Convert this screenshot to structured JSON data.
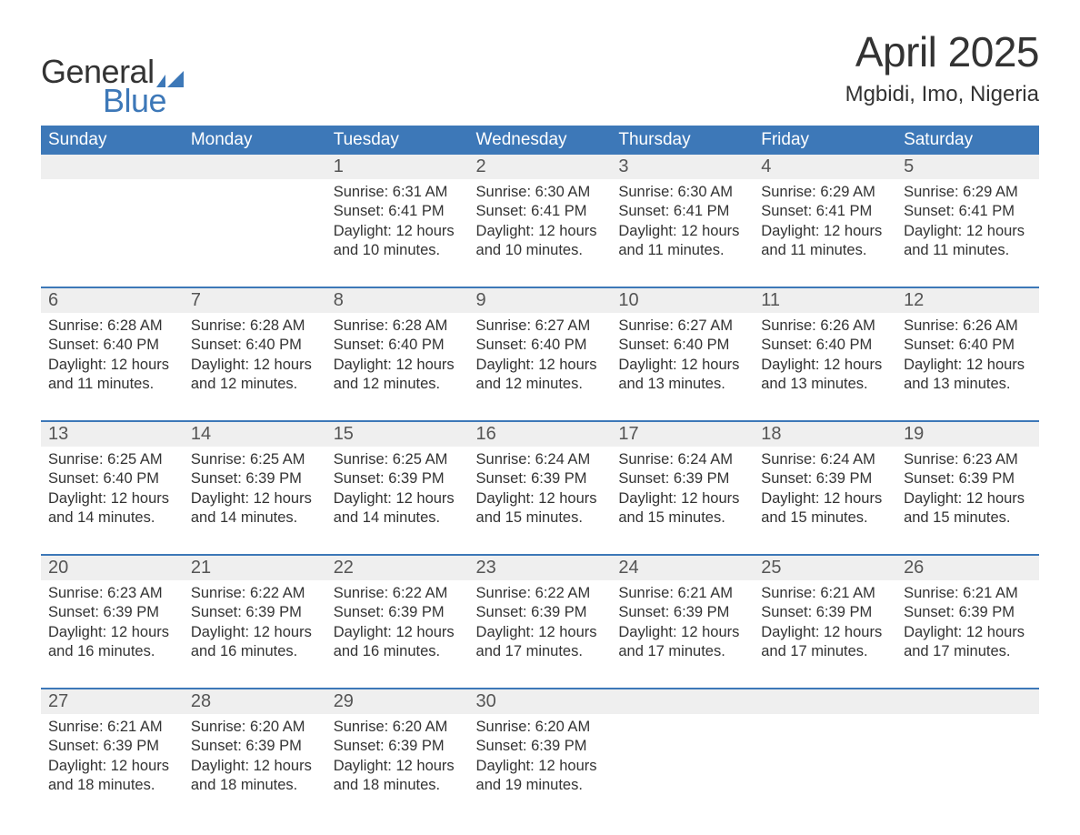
{
  "logo": {
    "general": "General",
    "blue": "Blue",
    "flag_color": "#3d78b8"
  },
  "title": "April 2025",
  "location": "Mgbidi, Imo, Nigeria",
  "colors": {
    "header_bg": "#3d78b8",
    "header_text": "#ffffff",
    "daynum_bg": "#efefef",
    "text": "#333333",
    "row_divider": "#3d78b8"
  },
  "fonts": {
    "title_size_pt": 34,
    "location_size_pt": 18,
    "header_size_pt": 14,
    "daynum_size_pt": 15,
    "body_size_pt": 12
  },
  "day_headers": [
    "Sunday",
    "Monday",
    "Tuesday",
    "Wednesday",
    "Thursday",
    "Friday",
    "Saturday"
  ],
  "weeks": [
    [
      null,
      null,
      {
        "n": "1",
        "sr": "6:31 AM",
        "ss": "6:41 PM",
        "dl": "12 hours and 10 minutes."
      },
      {
        "n": "2",
        "sr": "6:30 AM",
        "ss": "6:41 PM",
        "dl": "12 hours and 10 minutes."
      },
      {
        "n": "3",
        "sr": "6:30 AM",
        "ss": "6:41 PM",
        "dl": "12 hours and 11 minutes."
      },
      {
        "n": "4",
        "sr": "6:29 AM",
        "ss": "6:41 PM",
        "dl": "12 hours and 11 minutes."
      },
      {
        "n": "5",
        "sr": "6:29 AM",
        "ss": "6:41 PM",
        "dl": "12 hours and 11 minutes."
      }
    ],
    [
      {
        "n": "6",
        "sr": "6:28 AM",
        "ss": "6:40 PM",
        "dl": "12 hours and 11 minutes."
      },
      {
        "n": "7",
        "sr": "6:28 AM",
        "ss": "6:40 PM",
        "dl": "12 hours and 12 minutes."
      },
      {
        "n": "8",
        "sr": "6:28 AM",
        "ss": "6:40 PM",
        "dl": "12 hours and 12 minutes."
      },
      {
        "n": "9",
        "sr": "6:27 AM",
        "ss": "6:40 PM",
        "dl": "12 hours and 12 minutes."
      },
      {
        "n": "10",
        "sr": "6:27 AM",
        "ss": "6:40 PM",
        "dl": "12 hours and 13 minutes."
      },
      {
        "n": "11",
        "sr": "6:26 AM",
        "ss": "6:40 PM",
        "dl": "12 hours and 13 minutes."
      },
      {
        "n": "12",
        "sr": "6:26 AM",
        "ss": "6:40 PM",
        "dl": "12 hours and 13 minutes."
      }
    ],
    [
      {
        "n": "13",
        "sr": "6:25 AM",
        "ss": "6:40 PM",
        "dl": "12 hours and 14 minutes."
      },
      {
        "n": "14",
        "sr": "6:25 AM",
        "ss": "6:39 PM",
        "dl": "12 hours and 14 minutes."
      },
      {
        "n": "15",
        "sr": "6:25 AM",
        "ss": "6:39 PM",
        "dl": "12 hours and 14 minutes."
      },
      {
        "n": "16",
        "sr": "6:24 AM",
        "ss": "6:39 PM",
        "dl": "12 hours and 15 minutes."
      },
      {
        "n": "17",
        "sr": "6:24 AM",
        "ss": "6:39 PM",
        "dl": "12 hours and 15 minutes."
      },
      {
        "n": "18",
        "sr": "6:24 AM",
        "ss": "6:39 PM",
        "dl": "12 hours and 15 minutes."
      },
      {
        "n": "19",
        "sr": "6:23 AM",
        "ss": "6:39 PM",
        "dl": "12 hours and 15 minutes."
      }
    ],
    [
      {
        "n": "20",
        "sr": "6:23 AM",
        "ss": "6:39 PM",
        "dl": "12 hours and 16 minutes."
      },
      {
        "n": "21",
        "sr": "6:22 AM",
        "ss": "6:39 PM",
        "dl": "12 hours and 16 minutes."
      },
      {
        "n": "22",
        "sr": "6:22 AM",
        "ss": "6:39 PM",
        "dl": "12 hours and 16 minutes."
      },
      {
        "n": "23",
        "sr": "6:22 AM",
        "ss": "6:39 PM",
        "dl": "12 hours and 17 minutes."
      },
      {
        "n": "24",
        "sr": "6:21 AM",
        "ss": "6:39 PM",
        "dl": "12 hours and 17 minutes."
      },
      {
        "n": "25",
        "sr": "6:21 AM",
        "ss": "6:39 PM",
        "dl": "12 hours and 17 minutes."
      },
      {
        "n": "26",
        "sr": "6:21 AM",
        "ss": "6:39 PM",
        "dl": "12 hours and 17 minutes."
      }
    ],
    [
      {
        "n": "27",
        "sr": "6:21 AM",
        "ss": "6:39 PM",
        "dl": "12 hours and 18 minutes."
      },
      {
        "n": "28",
        "sr": "6:20 AM",
        "ss": "6:39 PM",
        "dl": "12 hours and 18 minutes."
      },
      {
        "n": "29",
        "sr": "6:20 AM",
        "ss": "6:39 PM",
        "dl": "12 hours and 18 minutes."
      },
      {
        "n": "30",
        "sr": "6:20 AM",
        "ss": "6:39 PM",
        "dl": "12 hours and 19 minutes."
      },
      null,
      null,
      null
    ]
  ],
  "labels": {
    "sunrise": "Sunrise: ",
    "sunset": "Sunset: ",
    "daylight": "Daylight: "
  }
}
